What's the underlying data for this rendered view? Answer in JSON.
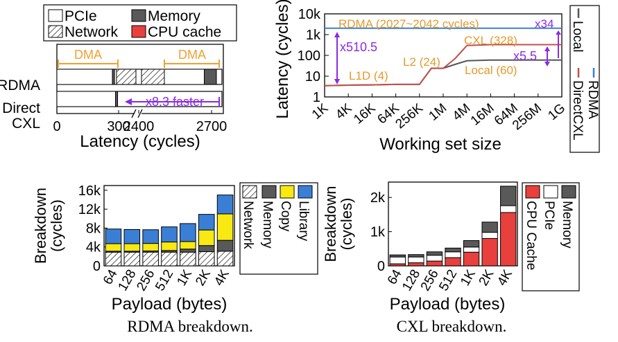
{
  "colors": {
    "pcie": "#ffffff",
    "memory": "#595959",
    "cpu_cache": "#e8403c",
    "copy": "#f7e911",
    "library": "#3a7fd5",
    "dma": "#f0a030",
    "annotation": "#8a2be2",
    "rdma_line": "#3a7fd5",
    "local_line": "#555555",
    "directcxl_line": "#c0504d",
    "latency_annot": "#e59a2a"
  },
  "captions": {
    "rdma": "RDMA breakdown.",
    "cxl": "CXL breakdown."
  },
  "chart_data": [
    {
      "type": "bar",
      "orientation": "horizontal",
      "legend": [
        "PCIe",
        "Memory",
        "Network",
        "CPU cache"
      ],
      "categories": [
        "RDMA",
        "Direct CXL"
      ],
      "category_labels": [
        [
          "RDMA"
        ],
        [
          "Direct",
          "CXL"
        ]
      ],
      "axis_break": [
        300,
        2400
      ],
      "xticks": [
        "0",
        "300",
        "2400",
        "2700"
      ],
      "xlabel": "Latency (cycles)",
      "rows": [
        {
          "name": "RDMA",
          "segments": [
            {
              "kind": "PCIe",
              "start": 0,
              "end": 270
            },
            {
              "kind": "Memory",
              "start": 270,
              "end": 305
            },
            {
              "kind": "Network",
              "start": 305,
              "end": 2420
            },
            {
              "kind": "PCIe",
              "start": 2420,
              "end": 2670
            },
            {
              "kind": "Memory",
              "start": 2670,
              "end": 2720
            }
          ]
        },
        {
          "name": "Direct CXL",
          "segments": [
            {
              "kind": "PCIe",
              "start": 0,
              "end": 285
            },
            {
              "kind": "Memory",
              "start": 285,
              "end": 318
            },
            {
              "kind": "CPU cache",
              "start": 318,
              "end": 328
            }
          ]
        }
      ],
      "annotations": {
        "dma_left": "DMA",
        "dma_right": "DMA",
        "speedup": "x8.3 faster"
      }
    },
    {
      "type": "line",
      "xlabel": "Working set size",
      "ylabel": "Latency (cycles)",
      "yscale": "log",
      "xticks": [
        "1K",
        "4K",
        "16K",
        "64K",
        "256K",
        "1M",
        "4M",
        "16M",
        "64M",
        "256M",
        "1G"
      ],
      "yticks": [
        "1",
        "10",
        "100",
        "1k",
        "10k"
      ],
      "ylim": [
        1,
        10000
      ],
      "x": [
        "1K",
        "4K",
        "16K",
        "64K",
        "256K",
        "512K",
        "1M",
        "2M",
        "4M",
        "16M",
        "64M",
        "256M",
        "1G"
      ],
      "series": [
        {
          "name": "Local",
          "values": [
            3.5,
            3.7,
            3.8,
            4,
            4,
            24,
            24,
            37,
            55,
            60,
            60,
            60,
            60
          ]
        },
        {
          "name": "DirectCXL",
          "values": [
            3.5,
            3.7,
            3.8,
            4,
            4,
            24,
            24,
            70,
            300,
            328,
            328,
            328,
            328
          ]
        },
        {
          "name": "RDMA",
          "values": [
            2030,
            2030,
            2030,
            2030,
            2030,
            2030,
            2030,
            2030,
            2035,
            2040,
            2040,
            2042,
            2042
          ]
        }
      ],
      "annotations": {
        "rdma": "RDMA (2027~2042 cycles)",
        "x34": "x34",
        "x5105": "x510.5",
        "cxl": "CXL (328)",
        "x55": "x5.5",
        "l2": "L2 (24)",
        "local": "Local (60)",
        "l1d": "L1D (4)"
      }
    },
    {
      "type": "bar",
      "stacked": true,
      "xlabel": "Payload (bytes)",
      "ylabel": "Breakdown (cycles)",
      "categories": [
        "64",
        "128",
        "256",
        "512",
        "1K",
        "2K",
        "4K"
      ],
      "yticks": [
        "0",
        "4k",
        "8k",
        "12k",
        "16k"
      ],
      "ylim": [
        0,
        17000
      ],
      "series": [
        {
          "name": "Network",
          "values": [
            2900,
            2900,
            2900,
            2900,
            2900,
            3000,
            3100
          ]
        },
        {
          "name": "Memory",
          "values": [
            200,
            200,
            250,
            350,
            650,
            1300,
            2300
          ]
        },
        {
          "name": "Copy",
          "values": [
            1600,
            1600,
            1600,
            1800,
            1600,
            3300,
            5600
          ]
        },
        {
          "name": "Library",
          "values": [
            3100,
            3000,
            2900,
            3200,
            3800,
            3300,
            4000
          ]
        }
      ]
    },
    {
      "type": "bar",
      "stacked": true,
      "xlabel": "Payload (bytes)",
      "ylabel": "Breakdown (cycles)",
      "categories": [
        "64",
        "128",
        "256",
        "512",
        "1K",
        "2K",
        "4K"
      ],
      "yticks": [
        "0",
        "1k",
        "2k"
      ],
      "ylim": [
        0,
        2450
      ],
      "series": [
        {
          "name": "CPU Cache",
          "values": [
            60,
            90,
            140,
            240,
            400,
            800,
            1560
          ]
        },
        {
          "name": "PCIe",
          "values": [
            200,
            170,
            170,
            170,
            150,
            180,
            200
          ]
        },
        {
          "name": "Memory",
          "values": [
            60,
            70,
            100,
            110,
            190,
            300,
            570
          ]
        }
      ]
    }
  ]
}
